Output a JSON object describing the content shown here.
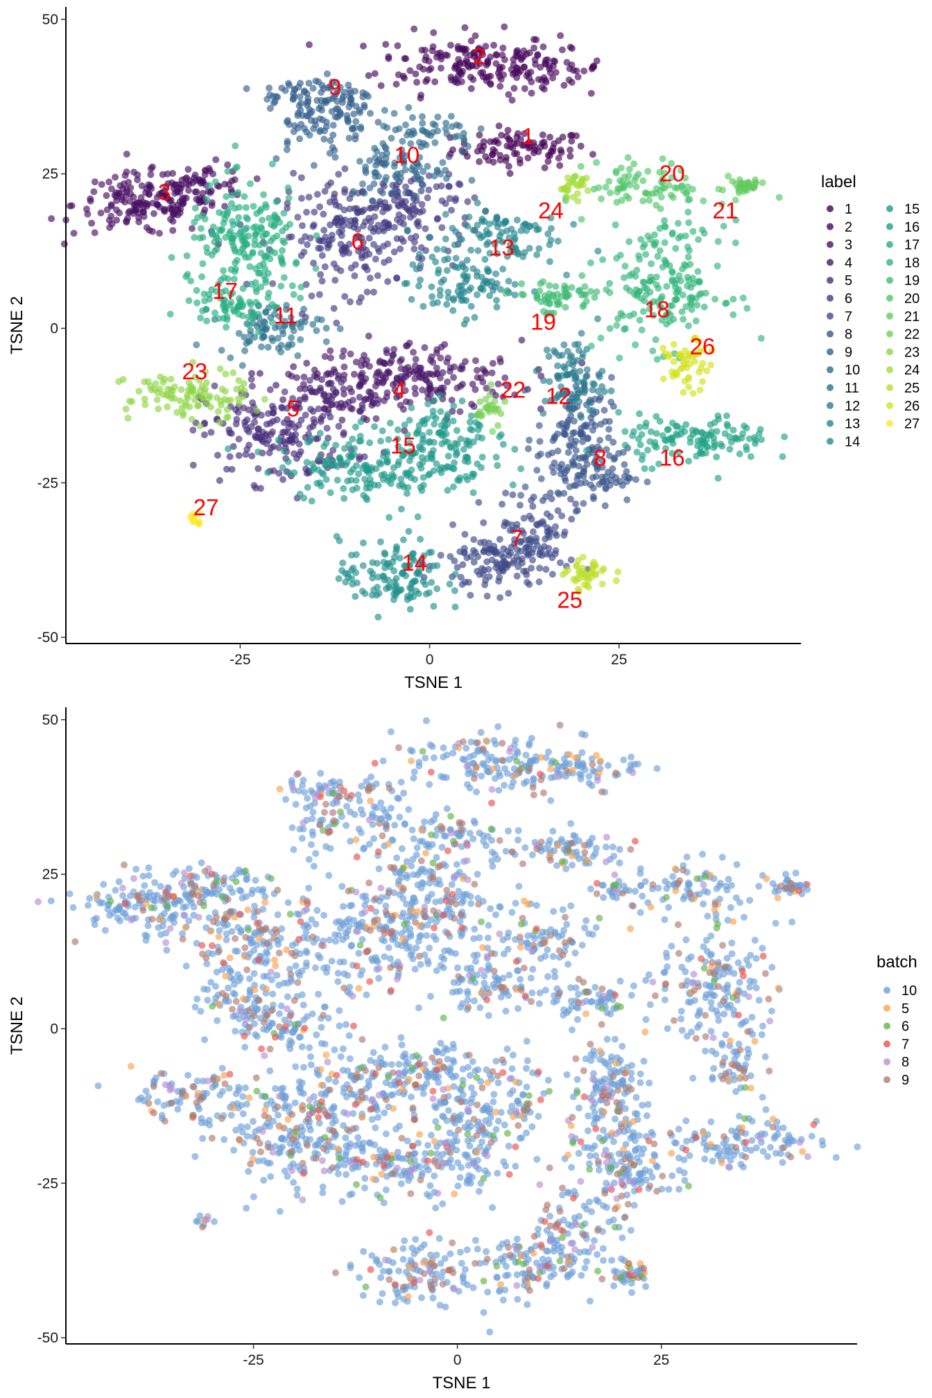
{
  "chart_data": [
    {
      "type": "scatter",
      "xlabel": "TSNE 1",
      "ylabel": "TSNE 2",
      "xlim": [
        -48,
        49
      ],
      "ylim": [
        -51,
        52
      ],
      "xticks": [
        -25,
        0,
        25
      ],
      "yticks": [
        -50,
        -25,
        0,
        25,
        50
      ],
      "grid": false,
      "legend": {
        "title": "label",
        "placement": "right",
        "columns": 2
      },
      "series": [
        {
          "name": "1",
          "color": "#440154",
          "clusters": [
            {
              "cx": 12,
              "cy": 29,
              "sx": 4.5,
              "sy": 1.5,
              "n": 90
            }
          ]
        },
        {
          "name": "2",
          "color": "#46085c",
          "clusters": [
            {
              "cx": 5,
              "cy": 43,
              "sx": 6,
              "sy": 2.5,
              "n": 150
            },
            {
              "cx": 15,
              "cy": 42,
              "sx": 4,
              "sy": 1.5,
              "n": 60
            }
          ]
        },
        {
          "name": "3",
          "color": "#471063",
          "clusters": [
            {
              "cx": -38,
              "cy": 20,
              "sx": 4.5,
              "sy": 2.5,
              "n": 150
            },
            {
              "cx": -30,
              "cy": 23,
              "sx": 3,
              "sy": 1.8,
              "n": 70
            }
          ]
        },
        {
          "name": "4",
          "color": "#48186a",
          "clusters": [
            {
              "cx": -2,
              "cy": -8,
              "sx": 7,
              "sy": 3,
              "n": 190
            },
            {
              "cx": -13,
              "cy": -10,
              "sx": 4,
              "sy": 2.5,
              "n": 80
            }
          ]
        },
        {
          "name": "5",
          "color": "#472d7b",
          "clusters": [
            {
              "cx": -20,
              "cy": -17,
              "sx": 5,
              "sy": 4,
              "n": 190
            }
          ]
        },
        {
          "name": "6",
          "color": "#443a83",
          "clusters": [
            {
              "cx": -10,
              "cy": 15,
              "sx": 5,
              "sy": 4.5,
              "n": 200
            },
            {
              "cx": -2,
              "cy": 20,
              "sx": 4,
              "sy": 3,
              "n": 90
            }
          ]
        },
        {
          "name": "7",
          "color": "#3e4a89",
          "clusters": [
            {
              "cx": 9,
              "cy": -38,
              "sx": 4,
              "sy": 2.5,
              "n": 120
            },
            {
              "cx": 14,
              "cy": -32,
              "sx": 2.5,
              "sy": 3,
              "n": 70
            }
          ]
        },
        {
          "name": "8",
          "color": "#39568c",
          "clusters": [
            {
              "cx": 19,
              "cy": -18,
              "sx": 2.5,
              "sy": 5,
              "n": 130
            },
            {
              "cx": 22,
              "cy": -24,
              "sx": 3,
              "sy": 2,
              "n": 60
            }
          ]
        },
        {
          "name": "9",
          "color": "#34618d",
          "clusters": [
            {
              "cx": -15,
              "cy": 38,
              "sx": 3.5,
              "sy": 1.5,
              "n": 60
            },
            {
              "cx": -16,
              "cy": 34,
              "sx": 2.5,
              "sy": 3,
              "n": 50
            },
            {
              "cx": -10,
              "cy": 34,
              "sx": 1.5,
              "sy": 3,
              "n": 40
            }
          ]
        },
        {
          "name": "10",
          "color": "#2f6c8e",
          "clusters": [
            {
              "cx": -4,
              "cy": 26,
              "sx": 3.5,
              "sy": 2.5,
              "n": 70
            },
            {
              "cx": -1,
              "cy": 32,
              "sx": 3.5,
              "sy": 1.5,
              "n": 50
            }
          ]
        },
        {
          "name": "11",
          "color": "#2c728e",
          "clusters": [
            {
              "cx": -21,
              "cy": 0,
              "sx": 3.5,
              "sy": 2,
              "n": 80
            }
          ]
        },
        {
          "name": "12",
          "color": "#287c8e",
          "clusters": [
            {
              "cx": 19,
              "cy": -8,
              "sx": 2,
              "sy": 3.5,
              "n": 80
            }
          ]
        },
        {
          "name": "13",
          "color": "#24868e",
          "clusters": [
            {
              "cx": 4,
              "cy": 7,
              "sx": 3.5,
              "sy": 2.5,
              "n": 90
            },
            {
              "cx": 9,
              "cy": 15,
              "sx": 4,
              "sy": 2.5,
              "n": 90
            }
          ]
        },
        {
          "name": "14",
          "color": "#21908d",
          "clusters": [
            {
              "cx": -5,
              "cy": -40,
              "sx": 3.5,
              "sy": 3,
              "n": 120
            }
          ]
        },
        {
          "name": "15",
          "color": "#1f9a8a",
          "clusters": [
            {
              "cx": -6,
              "cy": -22,
              "sx": 7,
              "sy": 2.8,
              "n": 200
            },
            {
              "cx": 2,
              "cy": -17,
              "sx": 3,
              "sy": 3,
              "n": 80
            }
          ]
        },
        {
          "name": "16",
          "color": "#20a386",
          "clusters": [
            {
              "cx": 35,
              "cy": -18,
              "sx": 5,
              "sy": 2,
              "n": 120
            }
          ]
        },
        {
          "name": "17",
          "color": "#26ad81",
          "clusters": [
            {
              "cx": -24,
              "cy": 13,
              "sx": 4,
              "sy": 5,
              "n": 200
            },
            {
              "cx": -26,
              "cy": 4,
              "sx": 3,
              "sy": 1.5,
              "n": 50
            }
          ]
        },
        {
          "name": "18",
          "color": "#31b57b",
          "clusters": [
            {
              "cx": 31,
              "cy": 7,
              "sx": 4,
              "sy": 5,
              "n": 180
            }
          ]
        },
        {
          "name": "19",
          "color": "#3fbc73",
          "clusters": [
            {
              "cx": 17,
              "cy": 5,
              "sx": 3,
              "sy": 1.5,
              "n": 60
            }
          ]
        },
        {
          "name": "20",
          "color": "#50c46a",
          "clusters": [
            {
              "cx": 29,
              "cy": 23,
              "sx": 4,
              "sy": 2,
              "n": 80
            }
          ]
        },
        {
          "name": "21",
          "color": "#63cb5f",
          "clusters": [
            {
              "cx": 41,
              "cy": 23,
              "sx": 1.5,
              "sy": 0.8,
              "n": 35
            }
          ]
        },
        {
          "name": "22",
          "color": "#77d153",
          "clusters": [
            {
              "cx": 8,
              "cy": -13,
              "sx": 1,
              "sy": 1.5,
              "n": 25
            }
          ]
        },
        {
          "name": "23",
          "color": "#8ed645",
          "clusters": [
            {
              "cx": -32,
              "cy": -11,
              "sx": 4,
              "sy": 2,
              "n": 100
            }
          ]
        },
        {
          "name": "24",
          "color": "#a5db36",
          "clusters": [
            {
              "cx": 19,
              "cy": 23,
              "sx": 1,
              "sy": 1,
              "n": 25
            }
          ]
        },
        {
          "name": "25",
          "color": "#bddf26",
          "clusters": [
            {
              "cx": 21,
              "cy": -40,
              "sx": 1.5,
              "sy": 1.2,
              "n": 40
            }
          ]
        },
        {
          "name": "26",
          "color": "#d2e21b",
          "clusters": [
            {
              "cx": 34,
              "cy": -6,
              "sx": 1.5,
              "sy": 2,
              "n": 50
            }
          ]
        },
        {
          "name": "27",
          "color": "#fde725",
          "clusters": [
            {
              "cx": -31,
              "cy": -31,
              "sx": 0.6,
              "sy": 0.6,
              "n": 10
            }
          ]
        }
      ],
      "annotations": [
        {
          "text": "1",
          "x": 13,
          "y": 31
        },
        {
          "text": "2",
          "x": 6.5,
          "y": 44
        },
        {
          "text": "3",
          "x": -35,
          "y": 22
        },
        {
          "text": "4",
          "x": -4,
          "y": -10
        },
        {
          "text": "5",
          "x": -18,
          "y": -13
        },
        {
          "text": "6",
          "x": -9.5,
          "y": 14
        },
        {
          "text": "7",
          "x": 11.5,
          "y": -34
        },
        {
          "text": "8",
          "x": 22.5,
          "y": -21
        },
        {
          "text": "9",
          "x": -12.5,
          "y": 39
        },
        {
          "text": "10",
          "x": -3,
          "y": 28
        },
        {
          "text": "11",
          "x": -19,
          "y": 2
        },
        {
          "text": "12",
          "x": 17,
          "y": -11
        },
        {
          "text": "13",
          "x": 9.5,
          "y": 13
        },
        {
          "text": "14",
          "x": -2,
          "y": -38
        },
        {
          "text": "15",
          "x": -3.5,
          "y": -19
        },
        {
          "text": "16",
          "x": 32,
          "y": -21
        },
        {
          "text": "17",
          "x": -27,
          "y": 6
        },
        {
          "text": "18",
          "x": 30,
          "y": 3
        },
        {
          "text": "19",
          "x": 15,
          "y": 1
        },
        {
          "text": "20",
          "x": 32,
          "y": 25
        },
        {
          "text": "21",
          "x": 39,
          "y": 19
        },
        {
          "text": "22",
          "x": 11,
          "y": -10
        },
        {
          "text": "23",
          "x": -31,
          "y": -7
        },
        {
          "text": "24",
          "x": 16,
          "y": 19
        },
        {
          "text": "25",
          "x": 18.5,
          "y": -44
        },
        {
          "text": "26",
          "x": 36,
          "y": -3
        },
        {
          "text": "27",
          "x": -29.5,
          "y": -29
        }
      ]
    },
    {
      "type": "scatter",
      "xlabel": "TSNE 1",
      "ylabel": "TSNE 2",
      "xlim": [
        -48,
        49
      ],
      "ylim": [
        -51,
        52
      ],
      "xticks": [
        -25,
        0,
        25
      ],
      "yticks": [
        -50,
        -25,
        0,
        25,
        50
      ],
      "grid": false,
      "legend": {
        "title": "batch",
        "placement": "right",
        "columns": 1
      },
      "series": [
        {
          "name": "10",
          "color": "#6f9fd8",
          "share": 0.74
        },
        {
          "name": "5",
          "color": "#f9a251",
          "share": 0.05
        },
        {
          "name": "6",
          "color": "#61b44a",
          "share": 0.03
        },
        {
          "name": "7",
          "color": "#e8524d",
          "share": 0.03
        },
        {
          "name": "8",
          "color": "#b98fd6",
          "share": 0.04
        },
        {
          "name": "9",
          "color": "#b07a6e",
          "share": 0.11
        }
      ]
    }
  ]
}
